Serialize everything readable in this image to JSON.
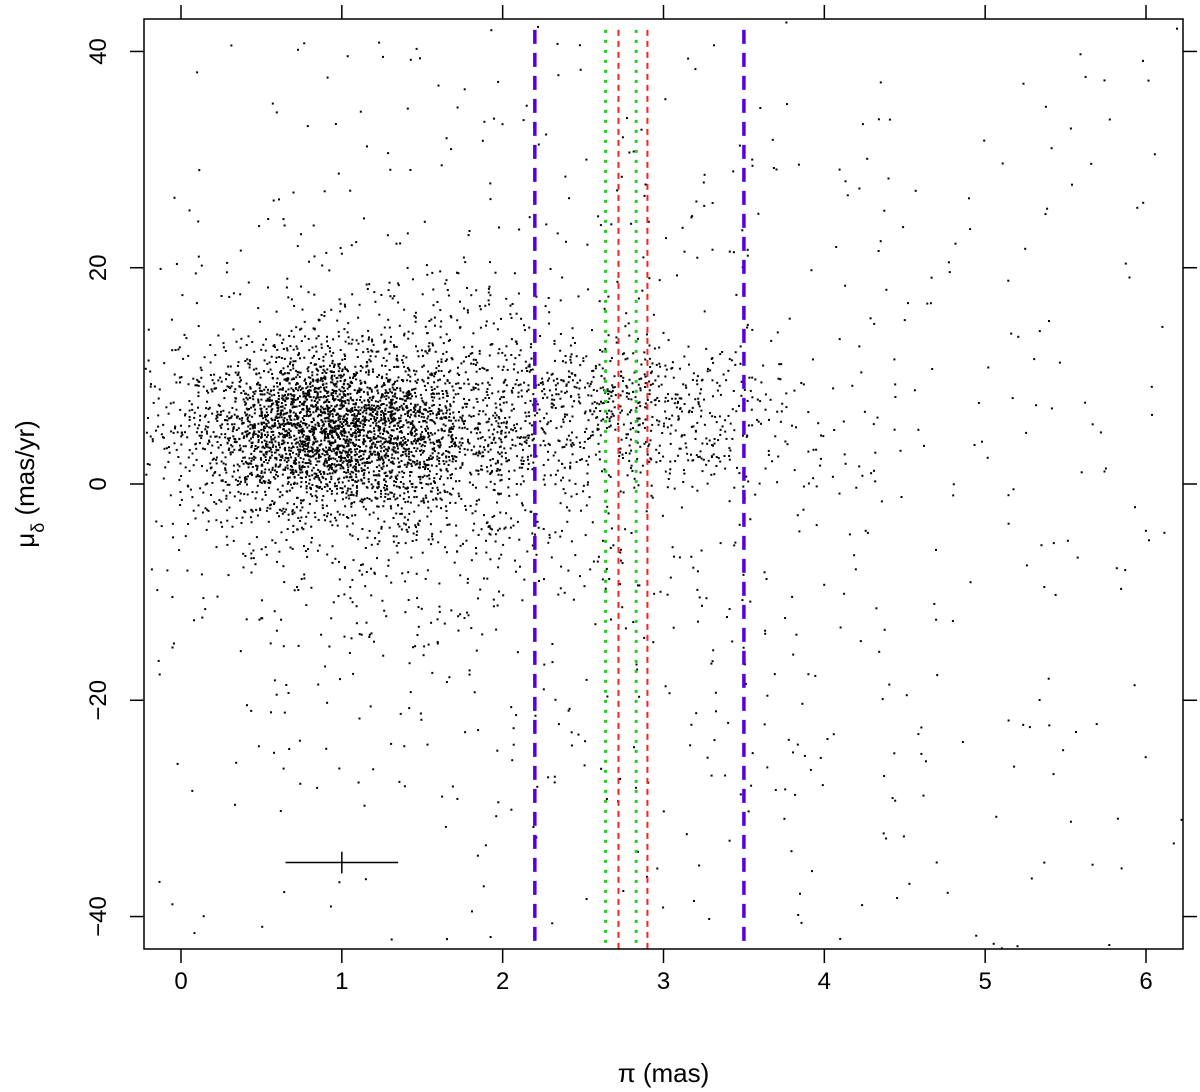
{
  "chart_data": {
    "type": "scatter",
    "title": "",
    "xlabel": "π (mas)",
    "ylabel_main": "μ",
    "ylabel_sub": "δ",
    "ylabel_unit": " (mas/yr)",
    "xlim": [
      -0.23,
      6.23
    ],
    "ylim": [
      -43.0,
      43.0
    ],
    "x_ticks": [
      0,
      1,
      2,
      3,
      4,
      5,
      6
    ],
    "x_tick_labels": [
      "0",
      "1",
      "2",
      "3",
      "4",
      "5",
      "6"
    ],
    "y_ticks": [
      -40,
      -20,
      0,
      20,
      40
    ],
    "y_tick_labels": [
      "−40",
      "−20",
      "0",
      "20",
      "40"
    ],
    "grid": false,
    "legend": "none",
    "point_color": "#000000",
    "vertical_lines": [
      {
        "x": 2.2,
        "color": "#5500dd",
        "style": "dashed"
      },
      {
        "x": 3.5,
        "color": "#5500dd",
        "style": "dashed"
      },
      {
        "x": 2.64,
        "color": "#22cc22",
        "style": "dotted"
      },
      {
        "x": 2.83,
        "color": "#22cc22",
        "style": "dotted"
      },
      {
        "x": 2.72,
        "color": "#ff2020",
        "style": "short-dashed"
      },
      {
        "x": 2.9,
        "color": "#ff2020",
        "style": "short-dashed"
      }
    ],
    "error_bar": {
      "x": 1.0,
      "y": -35.0,
      "x_err": 0.35,
      "y_err": 1.0
    },
    "point_clusters": [
      {
        "cx": 0.9,
        "cy": 5.0,
        "sx": 0.45,
        "sy": 3.5,
        "n": 2600
      },
      {
        "cx": 1.3,
        "cy": 4.0,
        "sx": 0.6,
        "sy": 7.0,
        "n": 1300
      },
      {
        "cx": 2.6,
        "cy": 7.5,
        "sx": 0.55,
        "sy": 3.0,
        "n": 500
      },
      {
        "cx": 3.2,
        "cy": 4.0,
        "sx": 0.5,
        "sy": 3.0,
        "n": 150
      },
      {
        "cx": 1.8,
        "cy": 0.0,
        "sx": 1.1,
        "sy": 14.0,
        "n": 500
      },
      {
        "cx": 3.6,
        "cy": 0.0,
        "sx": 1.5,
        "sy": 20.0,
        "n": 260
      }
    ],
    "point_uniform": {
      "xmin": -0.2,
      "xmax": 6.2,
      "ymin": -43,
      "ymax": 43,
      "n": 320
    }
  }
}
